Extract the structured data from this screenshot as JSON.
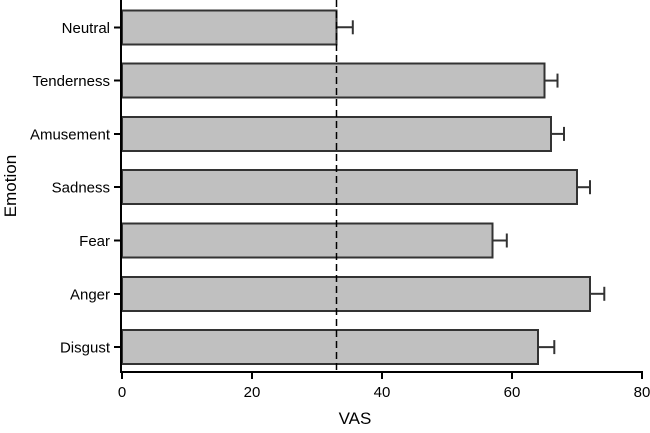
{
  "figure": {
    "background": "#ffffff"
  },
  "chart_data": {
    "type": "bar",
    "orientation": "horizontal",
    "title": "",
    "xlabel": "VAS",
    "ylabel": "Emotion",
    "categories": [
      "Neutral",
      "Tenderness",
      "Amusement",
      "Sadness",
      "Fear",
      "Anger",
      "Disgust"
    ],
    "values": [
      33,
      65,
      66,
      70,
      57,
      72,
      64
    ],
    "errors": [
      2.5,
      2,
      2,
      2,
      2.2,
      2.2,
      2.5
    ],
    "error_side": "plus",
    "xlim": [
      0,
      80
    ],
    "xticks": [
      0,
      20,
      40,
      60,
      80
    ],
    "reference_line_x": 33,
    "grid": false,
    "legend": null,
    "colors": {
      "bar_fill": "#c0c0c0",
      "bar_border": "#333333",
      "error_bar": "#333333",
      "axis": "#000000",
      "reference_line": "#000000",
      "text": "#000000"
    }
  }
}
